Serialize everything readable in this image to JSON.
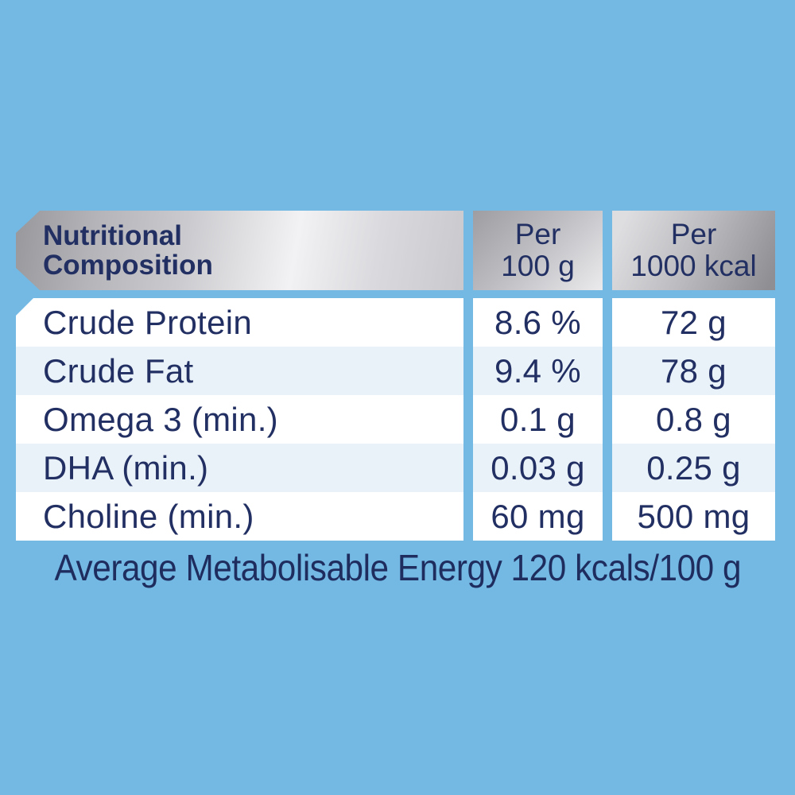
{
  "colors": {
    "background": "#73b9e4",
    "text_navy": "#222f62",
    "row_white": "#ffffff",
    "row_alt": "#e9f2f9",
    "header_silver": "#c9c9cd"
  },
  "table": {
    "header": {
      "title_line1": "Nutritional",
      "title_line2": "Composition",
      "col_per_100g_line1": "Per",
      "col_per_100g_line2": "100 g",
      "col_per_1000kcal_line1": "Per",
      "col_per_1000kcal_line2": "1000 kcal"
    },
    "rows": [
      {
        "label": "Crude Protein",
        "per_100g": "8.6 %",
        "per_1000kcal": "72 g"
      },
      {
        "label": "Crude Fat",
        "per_100g": "9.4 %",
        "per_1000kcal": "78 g"
      },
      {
        "label": "Omega 3 (min.)",
        "per_100g": "0.1 g",
        "per_1000kcal": "0.8 g"
      },
      {
        "label": "DHA (min.)",
        "per_100g": "0.03 g",
        "per_1000kcal": "0.25 g"
      },
      {
        "label": "Choline (min.)",
        "per_100g": "60 mg",
        "per_1000kcal": "500 mg"
      }
    ]
  },
  "footer": {
    "text": "Average Metabolisable Energy 120 kcals/100 g"
  }
}
